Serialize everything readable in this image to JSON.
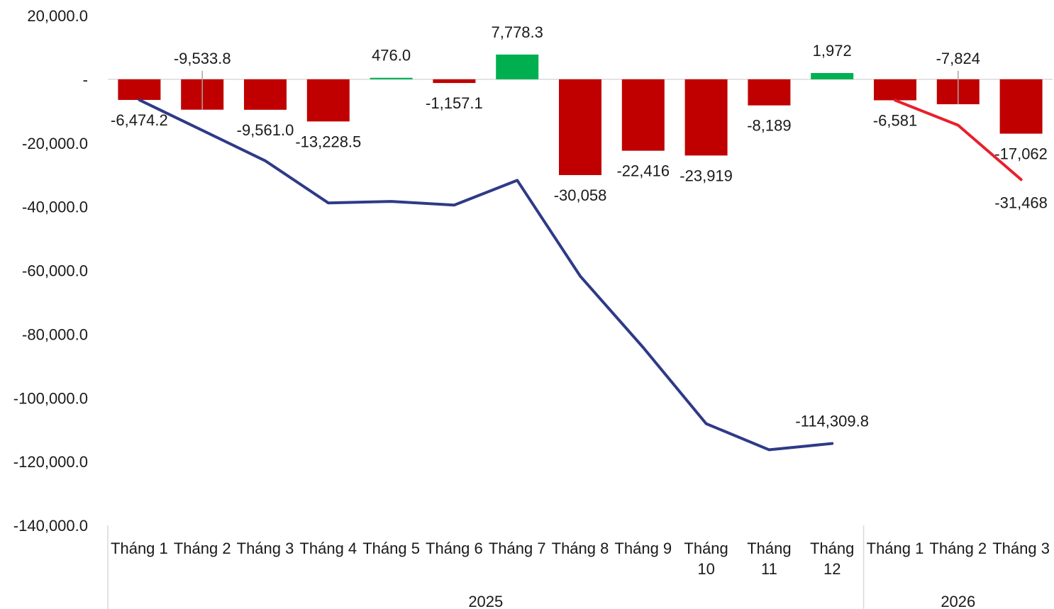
{
  "chart_data": {
    "type": "bar",
    "ylim": [
      -140000,
      20000
    ],
    "yticks": [
      20000,
      0,
      -20000,
      -40000,
      -60000,
      -80000,
      -100000,
      -120000,
      -140000
    ],
    "ytick_labels": [
      "20,000.0",
      "-",
      "-20,000.0",
      "-40,000.0",
      "-60,000.0",
      "-80,000.0",
      "-100,000.0",
      "-120,000.0",
      "-140,000.0"
    ],
    "grid": false,
    "categories": [
      "Tháng 1",
      "Tháng 2",
      "Tháng 3",
      "Tháng 4",
      "Tháng 5",
      "Tháng 6",
      "Tháng 7",
      "Tháng 8",
      "Tháng 9",
      "Tháng 10",
      "Tháng 11",
      "Tháng 12",
      "Tháng 1",
      "Tháng 2",
      "Tháng 3"
    ],
    "groups": [
      {
        "label": "2025",
        "count": 12
      },
      {
        "label": "2026",
        "count": 3
      }
    ],
    "colors": {
      "negative_bar": "#c00000",
      "positive_bar": "#00b050",
      "line_2025": "#2e3a87",
      "line_2026": "#e8202a",
      "axis": "#d9d9d9",
      "leader": "#a6a6a6"
    },
    "bars": {
      "values": [
        -6474.2,
        -9533.8,
        -9561.0,
        -13228.5,
        476.0,
        -1157.1,
        7778.3,
        -30058,
        -22416,
        -23919,
        -8189,
        1972,
        -6581,
        -7824,
        -17062
      ],
      "labels": [
        "-6,474.2",
        "-9,533.8",
        "-9,561.0",
        "-13,228.5",
        "476.0",
        "-1,157.1",
        "7,778.3",
        "-30,058",
        "-22,416",
        "-23,919",
        "-8,189",
        "1,972",
        "-6,581",
        "-7,824",
        "-17,062"
      ]
    },
    "cumulative_2025": {
      "values": [
        -6474.2,
        -16008.0,
        -25569.0,
        -38797.5,
        -38321.5,
        -39478.6,
        -31700.3,
        -61758.3,
        -84174.3,
        -108093.3,
        -116282.3,
        -114309.8
      ],
      "end_label": "-114,309.8"
    },
    "cumulative_2026": {
      "values": [
        -6581,
        -14405,
        -31468
      ],
      "end_label": "-31,468"
    }
  }
}
